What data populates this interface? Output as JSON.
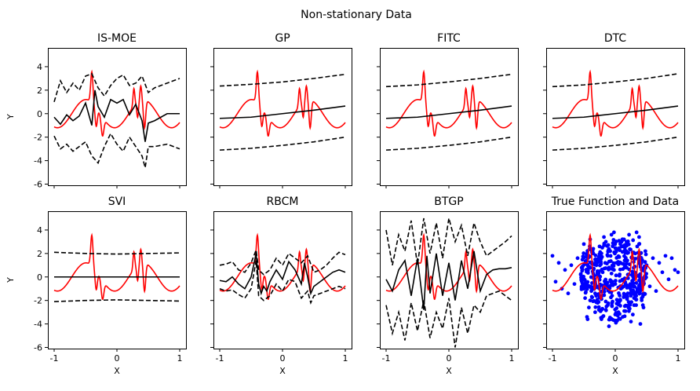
{
  "figure": {
    "title": "Non-stationary Data"
  },
  "colors": {
    "true_function": "#ff0000",
    "prediction": "#000000",
    "bounds": "#000000",
    "data_points": "#0000ff"
  },
  "chart_data": [
    {
      "type": "line",
      "title": "IS-MOE",
      "xlabel": "",
      "ylabel": "Y",
      "xlim": [
        -1.1,
        1.1
      ],
      "ylim": [
        -6.1,
        5.6
      ],
      "xticks": [
        "-1",
        "0",
        "1"
      ],
      "yticks": [
        "-6",
        "-4",
        "-2",
        "0",
        "2",
        "4"
      ],
      "style": "noisy",
      "series": [
        {
          "role": "mean",
          "x": [
            -1.0,
            -0.9,
            -0.8,
            -0.7,
            -0.6,
            -0.5,
            -0.4,
            -0.35,
            -0.3,
            -0.2,
            -0.1,
            0.0,
            0.1,
            0.2,
            0.3,
            0.4,
            0.45,
            0.5,
            0.6,
            0.8,
            1.0
          ],
          "y": [
            -0.3,
            -0.9,
            -0.1,
            -0.6,
            -0.2,
            0.9,
            -1.0,
            2.0,
            0.6,
            -0.3,
            1.2,
            0.9,
            1.2,
            -0.1,
            0.8,
            -0.6,
            -2.4,
            -0.8,
            -0.6,
            0.0,
            0.0
          ]
        },
        {
          "role": "upper",
          "x": [
            -1.0,
            -0.9,
            -0.8,
            -0.7,
            -0.6,
            -0.5,
            -0.4,
            -0.3,
            -0.2,
            -0.1,
            0.0,
            0.1,
            0.2,
            0.3,
            0.4,
            0.5,
            0.6,
            0.8,
            1.0
          ],
          "y": [
            1.0,
            2.8,
            1.8,
            2.6,
            2.0,
            3.2,
            3.4,
            2.2,
            1.5,
            2.4,
            3.0,
            3.3,
            2.4,
            2.6,
            3.2,
            1.8,
            2.2,
            2.6,
            3.0
          ]
        },
        {
          "role": "lower",
          "x": [
            -1.0,
            -0.9,
            -0.8,
            -0.7,
            -0.6,
            -0.5,
            -0.4,
            -0.3,
            -0.2,
            -0.1,
            0.0,
            0.1,
            0.2,
            0.3,
            0.4,
            0.45,
            0.5,
            0.6,
            0.8,
            1.0
          ],
          "y": [
            -1.9,
            -3.0,
            -2.6,
            -3.2,
            -2.8,
            -2.4,
            -3.6,
            -4.2,
            -2.8,
            -1.7,
            -2.6,
            -3.2,
            -2.0,
            -2.8,
            -3.6,
            -4.6,
            -2.8,
            -2.8,
            -2.6,
            -3.0
          ]
        }
      ]
    },
    {
      "type": "line",
      "title": "GP",
      "xlabel": "",
      "ylabel": "",
      "xlim": [
        -1.1,
        1.1
      ],
      "ylim": [
        -6.1,
        5.6
      ],
      "xticks": [
        "-1",
        "0",
        "1"
      ],
      "yticks": [
        "-6",
        "-4",
        "-2",
        "0",
        "2",
        "4"
      ],
      "style": "smooth",
      "series": [
        {
          "role": "mean",
          "x": [
            -1.0,
            -0.5,
            0.0,
            0.5,
            1.0
          ],
          "y": [
            -0.4,
            -0.3,
            0.0,
            0.3,
            0.65
          ]
        },
        {
          "role": "upper",
          "x": [
            -1.0,
            -0.5,
            0.0,
            0.5,
            1.0
          ],
          "y": [
            2.35,
            2.5,
            2.7,
            3.0,
            3.35
          ]
        },
        {
          "role": "lower",
          "x": [
            -1.0,
            -0.5,
            0.0,
            0.5,
            1.0
          ],
          "y": [
            -3.1,
            -2.95,
            -2.7,
            -2.4,
            -2.0
          ]
        }
      ]
    },
    {
      "type": "line",
      "title": "FITC",
      "xlabel": "",
      "ylabel": "",
      "xlim": [
        -1.1,
        1.1
      ],
      "ylim": [
        -6.1,
        5.6
      ],
      "xticks": [
        "-1",
        "0",
        "1"
      ],
      "yticks": [
        "-6",
        "-4",
        "-2",
        "0",
        "2",
        "4"
      ],
      "style": "smooth",
      "series": [
        {
          "role": "mean",
          "x": [
            -1.0,
            -0.5,
            0.0,
            0.5,
            1.0
          ],
          "y": [
            -0.4,
            -0.3,
            0.0,
            0.3,
            0.65
          ]
        },
        {
          "role": "upper",
          "x": [
            -1.0,
            -0.5,
            0.0,
            0.5,
            1.0
          ],
          "y": [
            2.3,
            2.45,
            2.7,
            3.0,
            3.35
          ]
        },
        {
          "role": "lower",
          "x": [
            -1.0,
            -0.5,
            0.0,
            0.5,
            1.0
          ],
          "y": [
            -3.1,
            -2.95,
            -2.7,
            -2.4,
            -2.0
          ]
        }
      ]
    },
    {
      "type": "line",
      "title": "DTC",
      "xlabel": "",
      "ylabel": "",
      "xlim": [
        -1.1,
        1.1
      ],
      "ylim": [
        -6.1,
        5.6
      ],
      "xticks": [
        "-1",
        "0",
        "1"
      ],
      "yticks": [
        "-6",
        "-4",
        "-2",
        "0",
        "2",
        "4"
      ],
      "style": "smooth",
      "series": [
        {
          "role": "mean",
          "x": [
            -1.0,
            -0.5,
            0.0,
            0.5,
            1.0
          ],
          "y": [
            -0.4,
            -0.3,
            0.0,
            0.3,
            0.65
          ]
        },
        {
          "role": "upper",
          "x": [
            -1.0,
            -0.5,
            0.0,
            0.5,
            1.0
          ],
          "y": [
            2.3,
            2.45,
            2.7,
            3.0,
            3.4
          ]
        },
        {
          "role": "lower",
          "x": [
            -1.0,
            -0.5,
            0.0,
            0.5,
            1.0
          ],
          "y": [
            -3.1,
            -2.95,
            -2.7,
            -2.4,
            -2.0
          ]
        }
      ]
    },
    {
      "type": "line",
      "title": "SVI",
      "xlabel": "X",
      "ylabel": "Y",
      "xlim": [
        -1.1,
        1.1
      ],
      "ylim": [
        -6.1,
        5.6
      ],
      "xticks": [
        "-1",
        "0",
        "1"
      ],
      "yticks": [
        "-6",
        "-4",
        "-2",
        "0",
        "2",
        "4"
      ],
      "style": "smooth",
      "series": [
        {
          "role": "mean",
          "x": [
            -1.0,
            1.0
          ],
          "y": [
            0.0,
            0.0
          ]
        },
        {
          "role": "upper",
          "x": [
            -1.0,
            -0.5,
            0.0,
            0.5,
            1.0
          ],
          "y": [
            2.1,
            2.0,
            1.95,
            2.0,
            2.05
          ]
        },
        {
          "role": "lower",
          "x": [
            -1.0,
            -0.5,
            0.0,
            0.5,
            1.0
          ],
          "y": [
            -2.1,
            -2.0,
            -1.95,
            -2.0,
            -2.05
          ]
        }
      ]
    },
    {
      "type": "line",
      "title": "RBCM",
      "xlabel": "X",
      "ylabel": "",
      "xlim": [
        -1.1,
        1.1
      ],
      "ylim": [
        -6.1,
        5.6
      ],
      "xticks": [
        "-1",
        "0",
        "1"
      ],
      "yticks": [
        "-6",
        "-4",
        "-2",
        "0",
        "2",
        "4"
      ],
      "style": "smooth",
      "series": [
        {
          "role": "mean",
          "x": [
            -1.0,
            -0.9,
            -0.8,
            -0.7,
            -0.6,
            -0.5,
            -0.42,
            -0.38,
            -0.34,
            -0.3,
            -0.25,
            -0.2,
            -0.1,
            0.0,
            0.1,
            0.2,
            0.3,
            0.35,
            0.4,
            0.45,
            0.5,
            0.6,
            0.7,
            0.8,
            0.9,
            1.0
          ],
          "y": [
            -0.3,
            -0.4,
            0.0,
            -0.6,
            -1.0,
            0.0,
            2.0,
            -0.6,
            -1.4,
            -0.8,
            -1.2,
            -0.4,
            0.6,
            -0.2,
            1.3,
            0.6,
            -0.6,
            1.2,
            0.0,
            -1.4,
            -0.8,
            -0.4,
            0.0,
            0.4,
            0.6,
            0.4
          ]
        },
        {
          "role": "upper",
          "x": [
            -1.0,
            -0.9,
            -0.8,
            -0.7,
            -0.6,
            -0.5,
            -0.42,
            -0.38,
            -0.3,
            -0.2,
            -0.1,
            0.0,
            0.1,
            0.2,
            0.3,
            0.4,
            0.5,
            0.6,
            0.7,
            0.8,
            0.9,
            1.0
          ],
          "y": [
            1.0,
            1.1,
            1.3,
            0.6,
            0.4,
            1.2,
            2.3,
            0.6,
            0.2,
            0.6,
            1.6,
            1.0,
            2.0,
            1.6,
            1.2,
            1.8,
            0.4,
            0.6,
            1.0,
            1.6,
            2.1,
            1.9
          ]
        },
        {
          "role": "lower",
          "x": [
            -1.0,
            -0.9,
            -0.8,
            -0.7,
            -0.6,
            -0.5,
            -0.42,
            -0.38,
            -0.3,
            -0.2,
            -0.1,
            0.0,
            0.1,
            0.2,
            0.3,
            0.4,
            0.45,
            0.5,
            0.6,
            0.7,
            0.8,
            0.9,
            1.0
          ],
          "y": [
            -1.0,
            -1.2,
            -1.1,
            -1.5,
            -1.8,
            -1.0,
            1.4,
            -1.6,
            -2.0,
            -1.6,
            -0.6,
            -1.2,
            -0.2,
            -0.4,
            -1.8,
            -1.2,
            -2.2,
            -1.6,
            -1.4,
            -1.2,
            -1.0,
            -0.8,
            -1.0
          ]
        }
      ]
    },
    {
      "type": "line",
      "title": "BTGP",
      "xlabel": "X",
      "ylabel": "",
      "xlim": [
        -1.1,
        1.1
      ],
      "ylim": [
        -6.1,
        5.6
      ],
      "xticks": [
        "-1",
        "0",
        "1"
      ],
      "yticks": [
        "-6",
        "-4",
        "-2",
        "0",
        "2",
        "4"
      ],
      "style": "noisy",
      "series": [
        {
          "role": "mean",
          "x": [
            -1.0,
            -0.9,
            -0.8,
            -0.7,
            -0.6,
            -0.5,
            -0.4,
            -0.35,
            -0.3,
            -0.2,
            -0.1,
            0.0,
            0.1,
            0.2,
            0.3,
            0.4,
            0.5,
            0.6,
            0.7,
            0.8,
            0.9,
            1.0
          ],
          "y": [
            -0.2,
            -1.2,
            0.6,
            1.4,
            -1.6,
            1.6,
            -2.8,
            1.8,
            -1.4,
            2.0,
            -1.6,
            1.2,
            -2.0,
            1.4,
            -1.0,
            2.2,
            -1.2,
            0.2,
            0.6,
            0.7,
            0.7,
            0.8
          ]
        },
        {
          "role": "upper",
          "x": [
            -1.0,
            -0.9,
            -0.8,
            -0.7,
            -0.6,
            -0.5,
            -0.4,
            -0.3,
            -0.2,
            -0.1,
            0.0,
            0.1,
            0.2,
            0.3,
            0.4,
            0.5,
            0.6,
            0.7,
            0.8,
            0.9,
            1.0
          ],
          "y": [
            4.0,
            1.0,
            3.6,
            2.2,
            4.8,
            1.0,
            5.0,
            2.0,
            4.6,
            1.6,
            5.0,
            3.0,
            4.4,
            1.8,
            4.6,
            3.0,
            1.8,
            2.2,
            2.6,
            3.0,
            3.5
          ]
        },
        {
          "role": "lower",
          "x": [
            -1.0,
            -0.9,
            -0.8,
            -0.7,
            -0.6,
            -0.5,
            -0.4,
            -0.3,
            -0.2,
            -0.1,
            0.0,
            0.1,
            0.2,
            0.3,
            0.4,
            0.5,
            0.6,
            0.7,
            0.8,
            0.9,
            1.0
          ],
          "y": [
            -2.4,
            -4.8,
            -3.0,
            -5.4,
            -2.2,
            -4.6,
            -2.0,
            -5.2,
            -3.0,
            -4.4,
            -1.8,
            -6.0,
            -2.6,
            -4.8,
            -2.4,
            -3.0,
            -1.6,
            -1.4,
            -1.2,
            -1.6,
            -2.0
          ]
        }
      ]
    },
    {
      "type": "scatter",
      "title": "True Function and Data",
      "xlabel": "X",
      "ylabel": "",
      "xlim": [
        -1.1,
        1.1
      ],
      "ylim": [
        -6.1,
        5.6
      ],
      "xticks": [
        "-1",
        "0",
        "1"
      ],
      "yticks": [
        "-6",
        "-4",
        "-2",
        "0",
        "2",
        "4"
      ],
      "style": "scatter",
      "points": {
        "x": [
          -1.0,
          -0.95,
          -0.9,
          -0.85,
          -0.8,
          -0.75,
          -0.7,
          -0.65,
          -0.6,
          -0.55,
          -0.5,
          -0.48,
          -0.45,
          -0.42,
          -0.4,
          -0.38,
          -0.35,
          -0.32,
          -0.3,
          -0.28,
          -0.25,
          -0.22,
          -0.2,
          -0.18,
          -0.15,
          -0.12,
          -0.1,
          -0.08,
          -0.05,
          -0.02,
          0.0,
          0.02,
          0.05,
          0.08,
          0.1,
          0.12,
          0.15,
          0.18,
          0.2,
          0.22,
          0.25,
          0.28,
          0.3,
          0.32,
          0.35,
          0.38,
          0.4,
          0.42,
          0.45,
          0.48,
          0.5,
          0.55,
          0.6,
          0.65,
          0.7,
          0.75,
          0.8,
          0.85,
          0.9,
          0.95,
          1.0,
          -0.5,
          -0.4,
          -0.3,
          -0.2,
          -0.1,
          0.0,
          0.1,
          0.2,
          0.3,
          0.4,
          -0.45,
          -0.35,
          -0.25,
          -0.15,
          -0.05,
          0.05,
          0.15,
          0.25,
          0.35,
          0.45,
          -0.42,
          -0.32,
          -0.22,
          -0.12,
          -0.02,
          0.08,
          0.18,
          0.28,
          0.38,
          -0.44,
          -0.36,
          -0.26,
          -0.16,
          -0.06,
          0.04,
          0.14,
          0.24,
          0.34,
          0.44
        ],
        "y": [
          1.8,
          -0.4,
          1.2,
          -1.0,
          0.6,
          -1.4,
          1.0,
          -0.6,
          1.6,
          0.2,
          2.8,
          -1.8,
          1.4,
          -2.6,
          3.2,
          -1.2,
          2.0,
          -3.0,
          1.0,
          -2.2,
          2.6,
          -3.6,
          0.4,
          3.4,
          -2.8,
          1.8,
          -4.2,
          2.2,
          -1.6,
          3.8,
          -3.2,
          1.2,
          2.4,
          -2.0,
          3.0,
          -3.4,
          0.8,
          2.8,
          -1.4,
          3.6,
          -3.8,
          1.6,
          -2.4,
          2.0,
          -1.0,
          3.4,
          -4.0,
          0.6,
          -2.6,
          2.2,
          1.0,
          -0.8,
          1.6,
          -1.2,
          1.2,
          0.4,
          1.8,
          -0.2,
          1.6,
          0.6,
          0.4,
          -1.0,
          -2.0,
          1.4,
          -1.2,
          0.8,
          -0.6,
          2.6,
          0.2,
          -1.8,
          1.0,
          -3.4,
          2.4,
          -0.8,
          3.0,
          -2.2,
          -3.0,
          1.4,
          -1.6,
          2.6,
          -0.4,
          1.8,
          -1.4,
          2.0,
          -2.4,
          0.6,
          -0.8,
          3.0,
          -3.2,
          2.8,
          -3.6,
          2.2,
          -2.8,
          1.2,
          3.6,
          -2.0,
          3.2,
          -0.6,
          3.8,
          -2.4
        ]
      },
      "series": []
    }
  ]
}
